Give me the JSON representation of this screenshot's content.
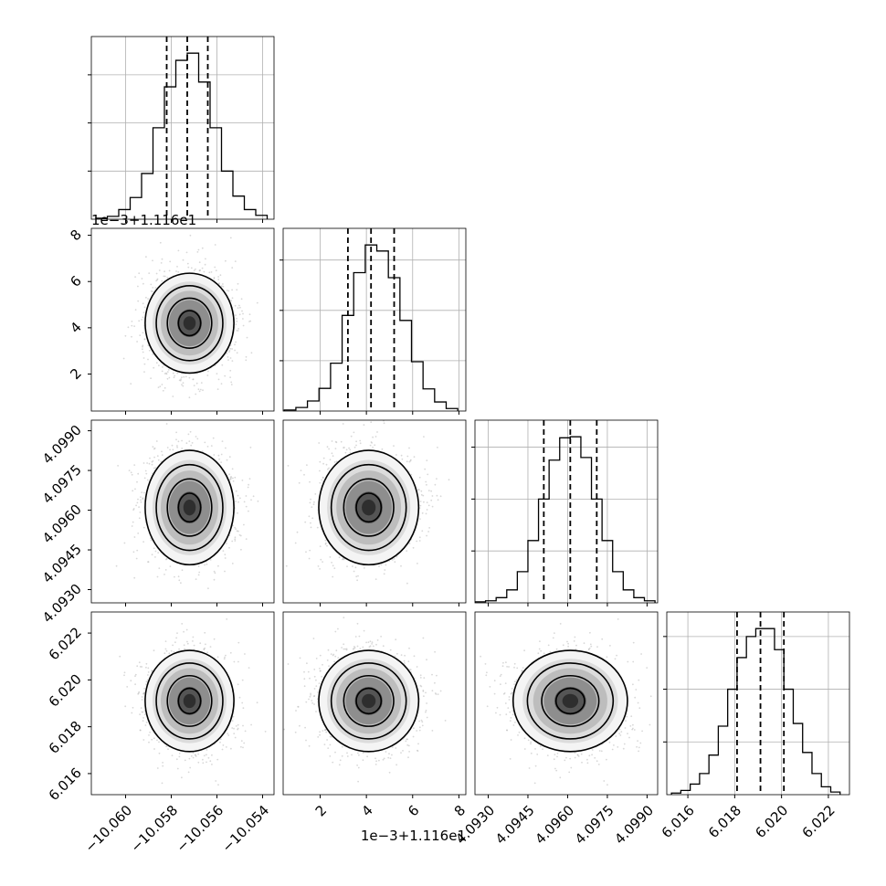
{
  "chart_data": {
    "type": "corner",
    "grid": true,
    "parameters": [
      {
        "range": [
          -10.0615,
          -10.0535
        ],
        "ticks": [
          -10.06,
          -10.058,
          -10.056,
          -10.054
        ],
        "tick_labels": [
          "−10.060",
          "−10.058",
          "−10.056",
          "−10.054"
        ],
        "offset_label": ""
      },
      {
        "range": [
          0.4,
          8.3
        ],
        "ticks": [
          2,
          4,
          6,
          8
        ],
        "tick_labels": [
          "2",
          "4",
          "6",
          "8"
        ],
        "offset_label": "1e−3+1.116e1"
      },
      {
        "range": [
          4.0925,
          4.0994
        ],
        "ticks": [
          4.093,
          4.0945,
          4.096,
          4.0975,
          4.099
        ],
        "tick_labels": [
          "4.0930",
          "4.0945",
          "4.0960",
          "4.0975",
          "4.0990"
        ],
        "offset_label": ""
      },
      {
        "range": [
          6.0151,
          6.0229
        ],
        "ticks": [
          6.016,
          6.018,
          6.02,
          6.022
        ],
        "tick_labels": [
          "6.016",
          "6.018",
          "6.020",
          "6.022"
        ],
        "offset_label": ""
      }
    ],
    "histograms": [
      {
        "quantiles": [
          -10.0582,
          -10.0573,
          -10.0564
        ],
        "bins": [
          -10.0613,
          -10.0608,
          -10.0603,
          -10.0598,
          -10.0593,
          -10.0588,
          -10.0583,
          -10.0578,
          -10.0573,
          -10.0568,
          -10.0563,
          -10.0558,
          -10.0553,
          -10.0548,
          -10.0543,
          -10.0538
        ],
        "counts": [
          2,
          6,
          20,
          45,
          95,
          190,
          275,
          330,
          345,
          285,
          190,
          100,
          48,
          20,
          8
        ]
      },
      {
        "quantiles": [
          3.2,
          4.2,
          5.2
        ],
        "bins": [
          0.45,
          0.95,
          1.45,
          1.95,
          2.45,
          2.95,
          3.45,
          3.95,
          4.45,
          4.95,
          5.45,
          5.95,
          6.45,
          6.95,
          7.45,
          7.95
        ],
        "counts": [
          2,
          7,
          20,
          45,
          95,
          190,
          275,
          330,
          318,
          265,
          180,
          98,
          44,
          18,
          5
        ]
      },
      {
        "quantiles": [
          4.0951,
          4.0961,
          4.0971
        ],
        "bins": [
          4.0925,
          4.0929,
          4.0933,
          4.0937,
          4.0941,
          4.0945,
          4.0949,
          4.0953,
          4.0957,
          4.0961,
          4.0965,
          4.0969,
          4.0973,
          4.0977,
          4.0981,
          4.0985,
          4.0989,
          4.0993
        ],
        "counts": [
          2,
          4,
          10,
          25,
          60,
          120,
          200,
          275,
          318,
          320,
          280,
          200,
          120,
          60,
          25,
          10,
          4
        ]
      },
      {
        "quantiles": [
          6.0181,
          6.0191,
          6.0201
        ],
        "bins": [
          6.0153,
          6.0157,
          6.0161,
          6.0165,
          6.0169,
          6.0173,
          6.0177,
          6.0181,
          6.0185,
          6.0189,
          6.0193,
          6.0197,
          6.0201,
          6.0205,
          6.0209,
          6.0213,
          6.0217,
          6.0221,
          6.0225
        ],
        "counts": [
          3,
          8,
          20,
          40,
          75,
          130,
          200,
          260,
          300,
          315,
          315,
          275,
          200,
          135,
          80,
          40,
          15,
          5
        ]
      }
    ],
    "correlations": {
      "1_0": {
        "center": [
          -10.0572,
          4.2
        ],
        "sd": [
          0.0009,
          1.0
        ]
      },
      "2_0": {
        "center": [
          -10.0572,
          4.0961
        ],
        "sd": [
          0.0009,
          0.001
        ]
      },
      "2_1": {
        "center": [
          4.1,
          4.0961
        ],
        "sd": [
          1.0,
          0.001
        ]
      },
      "3_0": {
        "center": [
          -10.0572,
          6.0191
        ],
        "sd": [
          0.0009,
          0.001
        ]
      },
      "3_1": {
        "center": [
          4.1,
          6.0191
        ],
        "sd": [
          1.0,
          0.001
        ]
      },
      "3_2": {
        "center": [
          4.0961,
          6.0191
        ],
        "sd": [
          0.001,
          0.001
        ]
      }
    },
    "contour_levels_sigma": [
      0.5,
      1.0,
      1.5,
      2.0
    ]
  }
}
